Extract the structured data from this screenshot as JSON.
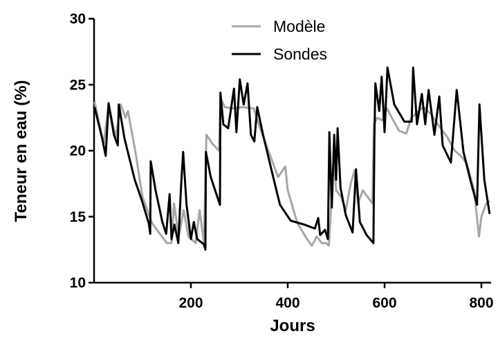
{
  "chart_data": {
    "type": "line",
    "x_label": "Jours",
    "y_label": "Teneur en eau (%)",
    "xlim": [
      0,
      820
    ],
    "ylim": [
      10,
      30
    ],
    "xticks": [
      200,
      400,
      600,
      800
    ],
    "yticks": [
      10,
      15,
      20,
      25,
      30
    ],
    "legend": "top-center",
    "series": [
      {
        "name": "Modèle",
        "color": "#a6a6a6",
        "x": [
          1,
          20,
          30,
          45,
          55,
          65,
          70,
          85,
          100,
          120,
          140,
          150,
          160,
          165,
          175,
          185,
          195,
          210,
          218,
          227,
          232,
          245,
          258,
          261,
          270,
          290,
          305,
          330,
          340,
          360,
          380,
          395,
          400,
          420,
          440,
          450,
          460,
          470,
          480,
          485,
          490,
          495,
          500,
          510,
          520,
          530,
          538,
          545,
          555,
          575,
          578,
          585,
          595,
          605,
          615,
          630,
          645,
          655,
          665,
          680,
          695,
          710,
          730,
          745,
          760,
          770,
          785,
          795,
          800,
          810,
          817
        ],
        "values": [
          23.7,
          20.5,
          23.5,
          21,
          23.5,
          22.5,
          23,
          20,
          16.5,
          14.5,
          13.5,
          13,
          13,
          16,
          13.5,
          15.5,
          13.5,
          13,
          15.5,
          13,
          21.2,
          20.5,
          20,
          24,
          23.3,
          23.2,
          23.3,
          23.2,
          22,
          20,
          18,
          18.8,
          17,
          14.5,
          13.3,
          12.8,
          13.5,
          13,
          13,
          12.8,
          16,
          19.5,
          17,
          16.5,
          15.5,
          17.5,
          18.5,
          16,
          17,
          16,
          22,
          22.5,
          22.3,
          23.2,
          22.5,
          21.5,
          21.3,
          22.5,
          22.8,
          23.3,
          22.8,
          22,
          21,
          20,
          19.5,
          19,
          17,
          13.5,
          15,
          16,
          16.2
        ]
      },
      {
        "name": "Sondes",
        "color": "#000000",
        "x": [
          1,
          17,
          24,
          30,
          41,
          49,
          51,
          63,
          84,
          99,
          113,
          116,
          117,
          127,
          141,
          149,
          156,
          160,
          166,
          174,
          180,
          184,
          191,
          200,
          206,
          213,
          227,
          230,
          231,
          241,
          260,
          261,
          267,
          277,
          289,
          294,
          301,
          309,
          317,
          324,
          331,
          337,
          349,
          370,
          384,
          406,
          434,
          456,
          463,
          467,
          477,
          483,
          486,
          491,
          496,
          500,
          503,
          509,
          520,
          534,
          541,
          549,
          563,
          577,
          579,
          581,
          589,
          594,
          600,
          606,
          620,
          641,
          656,
          659,
          667,
          677,
          684,
          691,
          703,
          713,
          720,
          737,
          749,
          763,
          777,
          791,
          796,
          806,
          817
        ],
        "values": [
          23.3,
          20.9,
          19.6,
          23.6,
          21.2,
          20.4,
          23.5,
          20.9,
          17.8,
          16.2,
          14.5,
          13.7,
          19.2,
          17,
          14.6,
          13.7,
          16.7,
          13.3,
          14.4,
          13,
          17.5,
          19.9,
          15.9,
          13.3,
          14.6,
          13.3,
          12.9,
          12.5,
          19.9,
          18,
          15.9,
          24.4,
          22,
          21.7,
          24.7,
          21.4,
          25.4,
          23.5,
          25.1,
          21.2,
          20.7,
          23.3,
          21.2,
          18,
          15.9,
          14.7,
          14.4,
          14.1,
          14.9,
          13.6,
          14,
          13.3,
          21.4,
          15.7,
          21.2,
          17.8,
          21.7,
          17.2,
          15.1,
          13.8,
          18.6,
          14.6,
          13.6,
          13,
          20.9,
          25.1,
          23,
          25.6,
          21.4,
          26.3,
          23.5,
          22.2,
          22.2,
          26.3,
          22,
          24.3,
          22,
          24.6,
          21.2,
          24.1,
          20.4,
          19.1,
          24.6,
          19.9,
          17.8,
          15.9,
          23.5,
          17.8,
          15.2
        ]
      }
    ]
  }
}
